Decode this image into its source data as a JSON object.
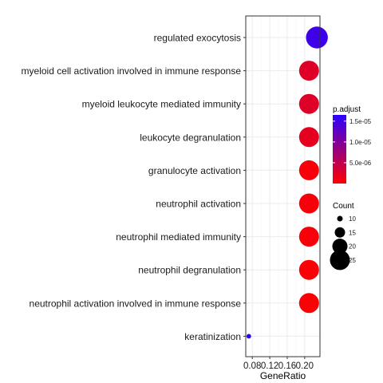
{
  "chart_data": {
    "type": "scatter",
    "title": "",
    "xlabel": "GeneRatio",
    "ylabel": "",
    "xlim": [
      0.065,
      0.235
    ],
    "xticks": [
      0.08,
      0.12,
      0.16,
      0.2
    ],
    "xtick_labels": [
      "0.08",
      "0.12",
      "0.16",
      "0.20"
    ],
    "grid": true,
    "categories": [
      "regulated exocytosis",
      "myeloid cell activation involved in immune response",
      "myeloid leukocyte mediated immunity",
      "leukocyte degranulation",
      "granulocyte activation",
      "neutrophil activation",
      "neutrophil mediated immunity",
      "neutrophil degranulation",
      "neutrophil activation involved in immune response",
      "keratinization"
    ],
    "points": [
      {
        "term": "regulated exocytosis",
        "gene_ratio": 0.228,
        "count": 27,
        "p_adjust": 1.5e-05
      },
      {
        "term": "myeloid cell activation involved in immune response",
        "gene_ratio": 0.21,
        "count": 25,
        "p_adjust": 2.5e-06
      },
      {
        "term": "myeloid leukocyte mediated immunity",
        "gene_ratio": 0.21,
        "count": 25,
        "p_adjust": 2.5e-06
      },
      {
        "term": "leukocyte degranulation",
        "gene_ratio": 0.21,
        "count": 25,
        "p_adjust": 2e-06
      },
      {
        "term": "granulocyte activation",
        "gene_ratio": 0.21,
        "count": 25,
        "p_adjust": 6e-07
      },
      {
        "term": "neutrophil activation",
        "gene_ratio": 0.21,
        "count": 25,
        "p_adjust": 6e-07
      },
      {
        "term": "neutrophil mediated immunity",
        "gene_ratio": 0.21,
        "count": 25,
        "p_adjust": 6e-07
      },
      {
        "term": "neutrophil degranulation",
        "gene_ratio": 0.21,
        "count": 25,
        "p_adjust": 3e-07
      },
      {
        "term": "neutrophil activation involved in immune response",
        "gene_ratio": 0.21,
        "count": 25,
        "p_adjust": 3e-07
      },
      {
        "term": "keratinization",
        "gene_ratio": 0.072,
        "count": 9,
        "p_adjust": 1.8e-05
      }
    ],
    "color_legend": {
      "title": "p.adjust",
      "ticks": [
        1.5e-05,
        1e-05,
        5e-06
      ],
      "tick_labels": [
        "1.5e-05",
        "1.0e-05",
        "5.0e-06"
      ],
      "range": [
        0,
        1.65e-05
      ],
      "low_color": "#ff0000",
      "high_color": "#2b00ff"
    },
    "size_legend": {
      "title": "Count",
      "values": [
        10,
        15,
        20,
        25
      ],
      "labels": [
        "10",
        "15",
        "20",
        "25"
      ]
    }
  }
}
